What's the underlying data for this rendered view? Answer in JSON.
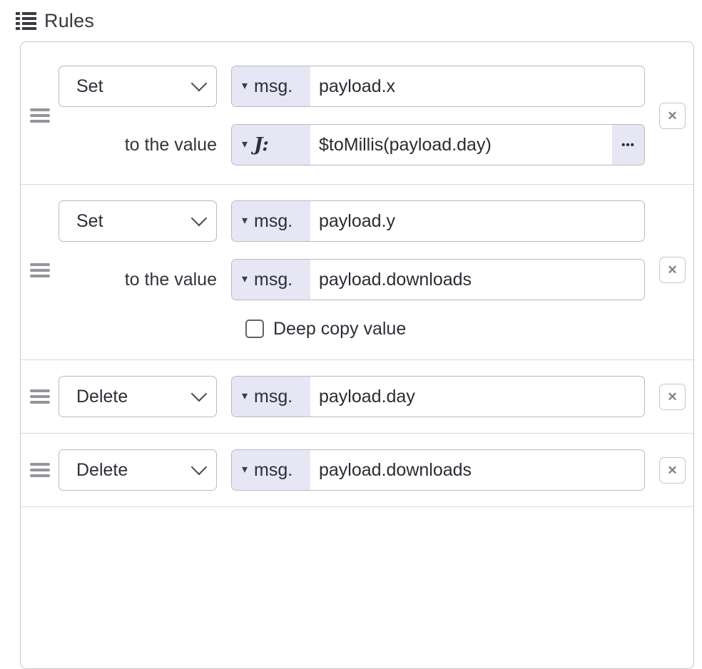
{
  "header": {
    "label": "Rules"
  },
  "labels": {
    "to_the_value": "to the value",
    "deep_copy": "Deep copy value"
  },
  "icons": {
    "list": "list-icon",
    "caret_down": "▾",
    "chevron_down": "chevron-down-icon",
    "close": "✕",
    "ellipsis": "•••",
    "expression": "J:"
  },
  "colors": {
    "prefix_lavender": "#e6e6f5",
    "input_border": "#b9b9c1",
    "container_border": "#c9c9cf",
    "divider": "#d8d8dd",
    "text": "#2e2e38",
    "handle_gray": "#94949c",
    "close_gray": "#80808a"
  },
  "rules": [
    {
      "action": "Set",
      "property_type": "msg.",
      "property": "payload.x",
      "value_type": "expression",
      "value": "$toMillis(payload.day)"
    },
    {
      "action": "Set",
      "property_type": "msg.",
      "property": "payload.y",
      "value_type": "msg.",
      "value": "payload.downloads",
      "deep_copy_checked": false
    },
    {
      "action": "Delete",
      "property_type": "msg.",
      "property": "payload.day"
    },
    {
      "action": "Delete",
      "property_type": "msg.",
      "property": "payload.downloads"
    }
  ]
}
